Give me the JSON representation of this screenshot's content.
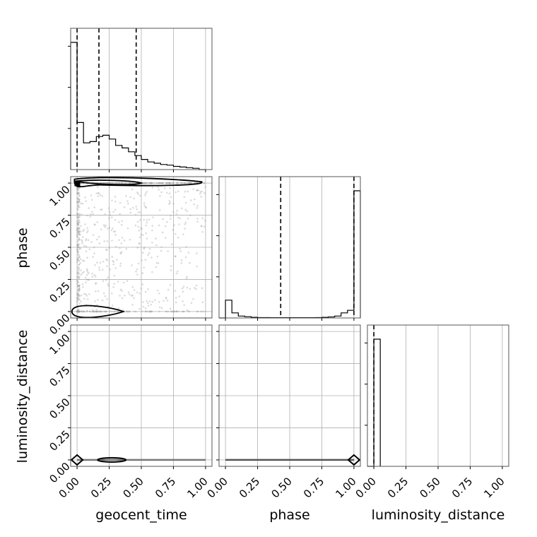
{
  "chart_data": {
    "type": "corner",
    "parameters": [
      "geocent_time",
      "phase",
      "luminosity_distance"
    ],
    "axis_labels": {
      "geocent_time": "geocent_time",
      "phase": "phase",
      "luminosity_distance": "luminosity_distance"
    },
    "ticks": [
      0.0,
      0.25,
      0.5,
      0.75,
      1.0
    ],
    "tick_labels": [
      "0.00",
      "0.25",
      "0.50",
      "0.75",
      "1.00"
    ],
    "range": [
      -0.05,
      1.05
    ],
    "grid": true,
    "histograms": {
      "geocent_time": {
        "bin_edges": [
          -0.05,
          0.0,
          0.05,
          0.1,
          0.15,
          0.2,
          0.25,
          0.3,
          0.35,
          0.4,
          0.45,
          0.5,
          0.55,
          0.6,
          0.65,
          0.7,
          0.75,
          0.8,
          0.85,
          0.9,
          0.95,
          1.0
        ],
        "counts": [
          1.0,
          0.37,
          0.21,
          0.22,
          0.26,
          0.27,
          0.24,
          0.19,
          0.17,
          0.14,
          0.11,
          0.08,
          0.06,
          0.05,
          0.04,
          0.035,
          0.025,
          0.02,
          0.015,
          0.01,
          0.0
        ],
        "quantiles": [
          0.0,
          0.17,
          0.46
        ]
      },
      "phase": {
        "bin_edges": [
          -0.05,
          0.0,
          0.05,
          0.1,
          0.15,
          0.2,
          0.25,
          0.3,
          0.35,
          0.4,
          0.45,
          0.5,
          0.55,
          0.6,
          0.65,
          0.7,
          0.75,
          0.8,
          0.85,
          0.9,
          0.95,
          1.0,
          1.05
        ],
        "counts": [
          0.0,
          0.14,
          0.04,
          0.015,
          0.01,
          0.005,
          0.003,
          0.003,
          0.002,
          0.002,
          0.002,
          0.002,
          0.002,
          0.002,
          0.002,
          0.003,
          0.005,
          0.008,
          0.015,
          0.04,
          0.06,
          1.0
        ],
        "quantiles": [
          0.43,
          1.0
        ]
      },
      "luminosity_distance": {
        "bin_edges": [
          -0.05,
          0.0,
          0.05
        ],
        "counts": [
          0.0,
          1.0
        ],
        "quantiles": [
          0.0
        ]
      }
    },
    "scatter": {
      "phase_vs_geocent_time": {
        "n_points": 1000,
        "contour_levels": 2
      },
      "luminosity_distance_vs_geocent_time": {
        "y_value": 0.0
      },
      "luminosity_distance_vs_phase": {
        "y_value": 0.0
      }
    }
  }
}
